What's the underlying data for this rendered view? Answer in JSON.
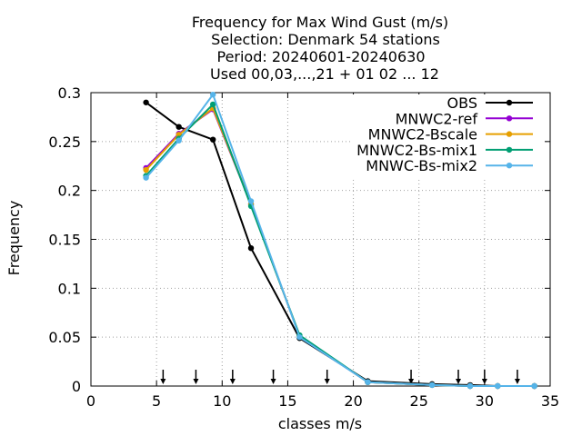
{
  "chart_data": {
    "type": "line",
    "title_lines": [
      "Frequency  for Max Wind Gust (m/s)",
      "Selection: Denmark     54 stations",
      "Period: 20240601-20240630",
      "Used 00,03,...,21 + 01 02 ... 12"
    ],
    "xlabel": "classes m/s",
    "ylabel": "Frequency",
    "xlim": [
      0,
      35
    ],
    "ylim": [
      0,
      0.3
    ],
    "xticks": [
      "0",
      "5",
      "10",
      "15",
      "20",
      "25",
      "30",
      "35"
    ],
    "yticks": [
      "0",
      "0.05",
      "0.1",
      "0.15",
      "0.2",
      "0.25",
      "0.3"
    ],
    "grid": true,
    "legend_position": "top-right",
    "x": [
      4.2,
      6.7,
      9.3,
      12.2,
      15.9,
      21.1,
      26.0,
      28.9,
      31.0,
      33.8
    ],
    "series": [
      {
        "name": "OBS",
        "color": "#000000",
        "values": [
          0.29,
          0.265,
          0.252,
          0.141,
          0.049,
          0.005,
          0.002,
          0.001,
          0.0,
          0.0
        ]
      },
      {
        "name": "MNWC2-ref",
        "color": "#9400d3",
        "values": [
          0.223,
          0.258,
          0.283,
          0.186,
          0.051,
          0.004,
          0.001,
          0.0,
          0.0,
          0.0
        ]
      },
      {
        "name": "MNWC2-Bscale",
        "color": "#e69f00",
        "values": [
          0.221,
          0.257,
          0.284,
          0.186,
          0.051,
          0.004,
          0.001,
          0.0,
          0.0,
          0.0
        ]
      },
      {
        "name": "MNWC2-Bs-mix1",
        "color": "#009e73",
        "values": [
          0.215,
          0.253,
          0.288,
          0.184,
          0.052,
          0.004,
          0.001,
          0.0,
          0.0,
          0.0
        ]
      },
      {
        "name": "MNWC-Bs-mix2",
        "color": "#56b4e9",
        "values": [
          0.213,
          0.251,
          0.298,
          0.189,
          0.05,
          0.004,
          0.001,
          0.0,
          0.0,
          0.0
        ]
      }
    ],
    "arrow_markers_x": [
      5.5,
      8.0,
      10.8,
      13.9,
      18.0,
      24.4,
      28.0,
      30.0,
      32.5
    ]
  }
}
